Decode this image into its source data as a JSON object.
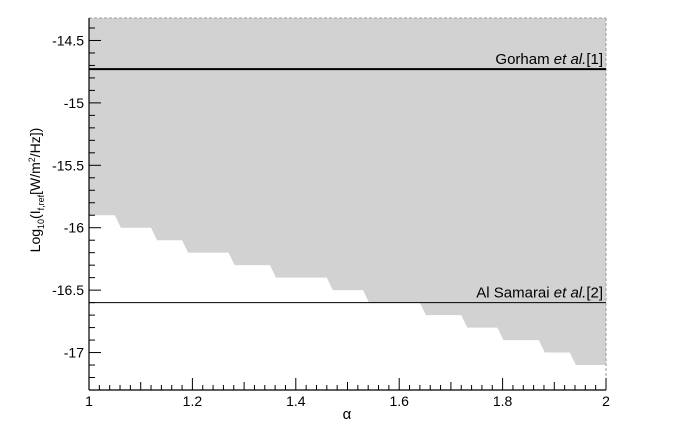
{
  "chart_data": {
    "type": "area",
    "title": "",
    "xlabel": "α",
    "ylabel": {
      "main": "Log",
      "sub1": "10",
      "paren": "(I",
      "sub2": "f,ref",
      "unit_start": "[W/m",
      "sup": "2",
      "unit_end": "/Hz])"
    },
    "xlim": [
      1.0,
      2.0
    ],
    "ylim": [
      -17.3,
      -14.32
    ],
    "x_ticks": [
      1,
      1.2,
      1.4,
      1.6,
      1.8,
      2
    ],
    "x_tick_labels": [
      "1",
      "1.2",
      "1.4",
      "1.6",
      "1.8",
      "2"
    ],
    "y_ticks": [
      -14.5,
      -15,
      -15.5,
      -16,
      -16.5,
      -17
    ],
    "y_tick_labels": [
      "-14.5",
      "-15",
      "-15.5",
      "-16",
      "-16.5",
      "-17"
    ],
    "grid": false,
    "excluded_region": {
      "color": "#d2d2d2",
      "boundary_steps": [
        {
          "x0": 1.0,
          "x1": 1.05,
          "y": -15.9
        },
        {
          "x0": 1.05,
          "x1": 1.12,
          "y": -16.0
        },
        {
          "x0": 1.12,
          "x1": 1.18,
          "y": -16.1
        },
        {
          "x0": 1.18,
          "x1": 1.27,
          "y": -16.2
        },
        {
          "x0": 1.27,
          "x1": 1.35,
          "y": -16.3
        },
        {
          "x0": 1.35,
          "x1": 1.46,
          "y": -16.4
        },
        {
          "x0": 1.46,
          "x1": 1.53,
          "y": -16.5
        },
        {
          "x0": 1.53,
          "x1": 1.64,
          "y": -16.6
        },
        {
          "x0": 1.64,
          "x1": 1.72,
          "y": -16.7
        },
        {
          "x0": 1.72,
          "x1": 1.79,
          "y": -16.8
        },
        {
          "x0": 1.79,
          "x1": 1.87,
          "y": -16.9
        },
        {
          "x0": 1.87,
          "x1": 1.93,
          "y": -17.0
        },
        {
          "x0": 1.93,
          "x1": 2.0,
          "y": -17.1
        }
      ]
    },
    "reference_lines": [
      {
        "y": -14.73,
        "label_name": "Gorham",
        "label_italic": "et al.",
        "label_ref": "[1]",
        "color": "#000000",
        "weight": "thick"
      },
      {
        "y": -16.6,
        "label_name": "Al Samarai",
        "label_italic": "et al.",
        "label_ref": "[2]",
        "color": "#000000",
        "weight": "thin"
      }
    ]
  }
}
